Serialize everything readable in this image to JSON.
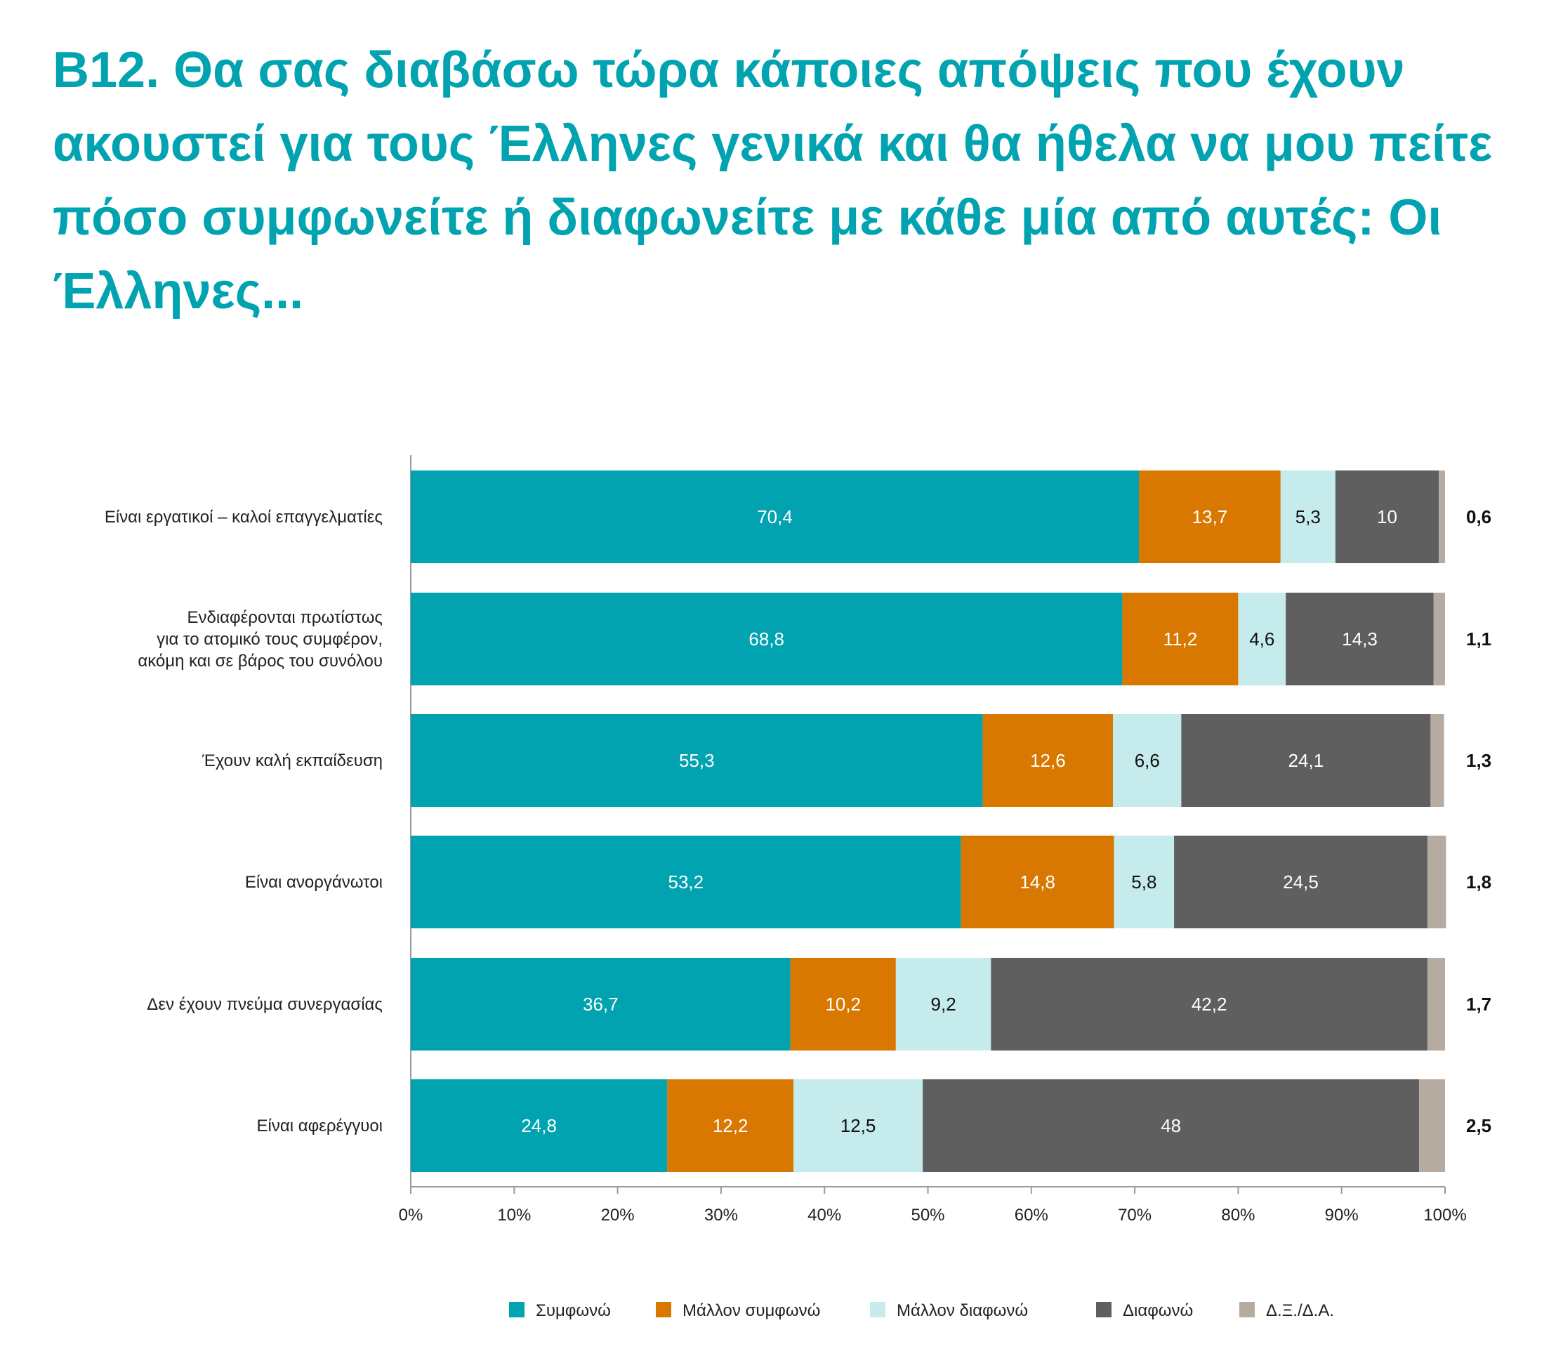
{
  "title": "B12. Θα σας διαβάσω τώρα κάποιες απόψεις που έχουν ακουστεί για τους Έλληνες γενικά και θα ήθελα να μου πείτε πόσο συμφωνείτε ή διαφωνείτε με κάθε μία από αυτές: Οι Έλληνες...",
  "chart_data": {
    "type": "bar",
    "orientation": "horizontal",
    "stacked": true,
    "categories": [
      [
        "Είναι εργατικοί – καλοί επαγγελματίες"
      ],
      [
        "Ενδιαφέρονται πρωτίστως",
        "για το ατομικό τους συμφέρον,",
        "ακόμη και σε βάρος του συνόλου"
      ],
      [
        "Έχουν καλή εκπαίδευση"
      ],
      [
        "Είναι ανοργάνωτοι"
      ],
      [
        "Δεν έχουν πνεύμα συνεργασίας"
      ],
      [
        "Είναι αφερέγγυοι"
      ]
    ],
    "series": [
      {
        "name": "Συμφωνώ",
        "color": "#00A3AF",
        "label_color": "#ffffff",
        "values": [
          70.4,
          68.8,
          55.3,
          53.2,
          36.7,
          24.8
        ],
        "labels": [
          "70,4",
          "68,8",
          "55,3",
          "53,2",
          "36,7",
          "24,8"
        ]
      },
      {
        "name": "Μάλλον συμφωνώ",
        "color": "#D87800",
        "label_color": "#ffffff",
        "values": [
          13.7,
          11.2,
          12.6,
          14.8,
          10.2,
          12.2
        ],
        "labels": [
          "13,7",
          "11,2",
          "12,6",
          "14,8",
          "10,2",
          "12,2"
        ]
      },
      {
        "name": "Μάλλον διαφωνώ",
        "color": "#C5EBEC",
        "label_color": "#111111",
        "values": [
          5.3,
          4.6,
          6.6,
          5.8,
          9.2,
          12.5
        ],
        "labels": [
          "5,3",
          "4,6",
          "6,6",
          "5,8",
          "9,2",
          "12,5"
        ]
      },
      {
        "name": "Διαφωνώ",
        "color": "#5F5F5F",
        "label_color": "#ffffff",
        "values": [
          10,
          14.3,
          24.1,
          24.5,
          42.2,
          48
        ],
        "labels": [
          "10",
          "14,3",
          "24,1",
          "24,5",
          "42,2",
          "48"
        ]
      },
      {
        "name": "Δ.Ξ./Δ.Α.",
        "color": "#B5ABA1",
        "label_color": "#111111",
        "values": [
          0.6,
          1.1,
          1.3,
          1.8,
          1.7,
          2.5
        ],
        "labels": [
          "0,6",
          "1,1",
          "1,3",
          "1,8",
          "1,7",
          "2,5"
        ],
        "label_outside": true
      }
    ],
    "x_ticks": [
      "0%",
      "10%",
      "20%",
      "30%",
      "40%",
      "50%",
      "60%",
      "70%",
      "80%",
      "90%",
      "100%"
    ],
    "xlim": [
      0,
      100
    ],
    "grid": false,
    "legend_position": "bottom"
  }
}
